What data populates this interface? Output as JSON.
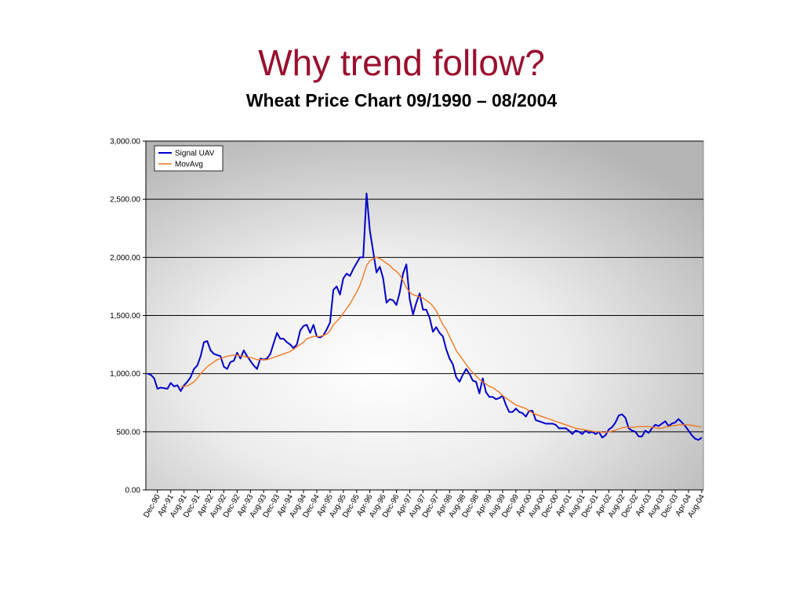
{
  "chart_data": {
    "type": "line",
    "title": "Why trend follow?",
    "subtitle": "Wheat Price Chart 09/1990 – 08/2004",
    "categories": [
      null,
      null,
      null,
      "Dec-90",
      null,
      null,
      null,
      "Apr-91",
      null,
      null,
      null,
      "Aug-91",
      null,
      null,
      null,
      "Dec-91",
      null,
      null,
      null,
      "Apr-92",
      null,
      null,
      null,
      "Aug-92",
      null,
      null,
      null,
      "Dec-92",
      null,
      null,
      null,
      "Apr-93",
      null,
      null,
      null,
      "Aug-93",
      null,
      null,
      null,
      "Dec-93",
      null,
      null,
      null,
      "Apr-94",
      null,
      null,
      null,
      "Aug-94",
      null,
      null,
      null,
      "Dec-94",
      null,
      null,
      null,
      "Apr-95",
      null,
      null,
      null,
      "Aug-95",
      null,
      null,
      null,
      "Dec-95",
      null,
      null,
      null,
      "Apr-96",
      null,
      null,
      null,
      "Aug-96",
      null,
      null,
      null,
      "Dec-96",
      null,
      null,
      null,
      "Apr-97",
      null,
      null,
      null,
      "Aug-97",
      null,
      null,
      null,
      "Dec-97",
      null,
      null,
      null,
      "Apr-98",
      null,
      null,
      null,
      "Aug-98",
      null,
      null,
      null,
      "Dec-98",
      null,
      null,
      null,
      "Apr-99",
      null,
      null,
      null,
      "Aug-99",
      null,
      null,
      null,
      "Dec-99",
      null,
      null,
      null,
      "Apr-00",
      null,
      null,
      null,
      "Aug-00",
      null,
      null,
      null,
      "Dec-00",
      null,
      null,
      null,
      "Apr-01",
      null,
      null,
      null,
      "Aug-01",
      null,
      null,
      null,
      "Dec-01",
      null,
      null,
      null,
      "Apr-02",
      null,
      null,
      null,
      "Aug-02",
      null,
      null,
      null,
      "Dec-02",
      null,
      null,
      null,
      "Apr-03",
      null,
      null,
      null,
      "Aug-03",
      null,
      null,
      null,
      "Dec-03",
      null,
      null,
      null,
      "Apr-04",
      null,
      null,
      null,
      "Aug-04"
    ],
    "series": [
      {
        "name": "Signal UAV",
        "color": "#0000cc",
        "values": [
          1000,
          990,
          960,
          870,
          880,
          875,
          870,
          920,
          890,
          900,
          850,
          900,
          930,
          970,
          1040,
          1070,
          1150,
          1270,
          1280,
          1200,
          1170,
          1160,
          1150,
          1060,
          1040,
          1100,
          1110,
          1180,
          1130,
          1200,
          1150,
          1110,
          1070,
          1040,
          1130,
          1120,
          1130,
          1170,
          1260,
          1350,
          1300,
          1300,
          1270,
          1250,
          1220,
          1250,
          1370,
          1410,
          1420,
          1350,
          1420,
          1320,
          1310,
          1330,
          1380,
          1440,
          1720,
          1750,
          1680,
          1820,
          1860,
          1840,
          1900,
          1950,
          2000,
          2000,
          2550,
          2230,
          2050,
          1870,
          1920,
          1820,
          1610,
          1640,
          1630,
          1590,
          1700,
          1860,
          1940,
          1640,
          1510,
          1610,
          1690,
          1550,
          1550,
          1480,
          1360,
          1400,
          1350,
          1320,
          1210,
          1130,
          1080,
          970,
          930,
          990,
          1040,
          1000,
          940,
          930,
          830,
          960,
          840,
          800,
          800,
          780,
          790,
          810,
          730,
          670,
          670,
          700,
          670,
          660,
          630,
          680,
          680,
          600,
          590,
          580,
          570,
          570,
          570,
          560,
          530,
          530,
          530,
          510,
          480,
          510,
          500,
          480,
          510,
          490,
          500,
          480,
          500,
          450,
          470,
          520,
          540,
          580,
          640,
          650,
          620,
          530,
          510,
          500,
          460,
          460,
          510,
          490,
          530,
          560,
          550,
          570,
          590,
          550,
          570,
          580,
          610,
          580,
          550,
          510,
          470,
          440,
          430,
          450
        ]
      },
      {
        "name": "MovAvg",
        "color": "#f07820",
        "values": [
          null,
          null,
          null,
          null,
          null,
          null,
          null,
          null,
          null,
          null,
          890,
          890,
          895,
          910,
          930,
          960,
          1000,
          1030,
          1060,
          1080,
          1100,
          1120,
          1130,
          1140,
          1150,
          1155,
          1160,
          1160,
          1150,
          1150,
          1140,
          1140,
          1130,
          1120,
          1120,
          1120,
          1120,
          1130,
          1140,
          1150,
          1160,
          1170,
          1180,
          1190,
          1210,
          1230,
          1250,
          1270,
          1300,
          1310,
          1320,
          1320,
          1320,
          1330,
          1340,
          1370,
          1420,
          1450,
          1480,
          1520,
          1560,
          1600,
          1650,
          1700,
          1760,
          1840,
          1930,
          1970,
          1990,
          2000,
          1990,
          1970,
          1950,
          1930,
          1900,
          1880,
          1850,
          1800,
          1740,
          1700,
          1680,
          1670,
          1660,
          1650,
          1630,
          1610,
          1580,
          1540,
          1480,
          1420,
          1380,
          1320,
          1260,
          1200,
          1160,
          1120,
          1080,
          1040,
          1010,
          980,
          950,
          930,
          910,
          890,
          880,
          860,
          840,
          810,
          790,
          770,
          750,
          730,
          720,
          710,
          700,
          680,
          660,
          650,
          640,
          630,
          620,
          610,
          600,
          590,
          580,
          570,
          560,
          550,
          540,
          530,
          525,
          520,
          515,
          510,
          505,
          500,
          500,
          495,
          495,
          500,
          505,
          515,
          525,
          535,
          540,
          540,
          540,
          540,
          545,
          545,
          545,
          545,
          540,
          535,
          530,
          530,
          540,
          545,
          550,
          555,
          560,
          560,
          560,
          560,
          555,
          550,
          545,
          540
        ]
      }
    ],
    "ylim": [
      0,
      3000
    ],
    "yticks": [
      {
        "value": 0,
        "label": "0.00"
      },
      {
        "value": 500,
        "label": "500.00"
      },
      {
        "value": 1000,
        "label": "1,000.00"
      },
      {
        "value": 1500,
        "label": "1,500.00"
      },
      {
        "value": 2000,
        "label": "2,000.00"
      },
      {
        "value": 2500,
        "label": "2,500.00"
      },
      {
        "value": 3000,
        "label": "3,000.00"
      }
    ],
    "grid": true,
    "legend": "top-left"
  }
}
